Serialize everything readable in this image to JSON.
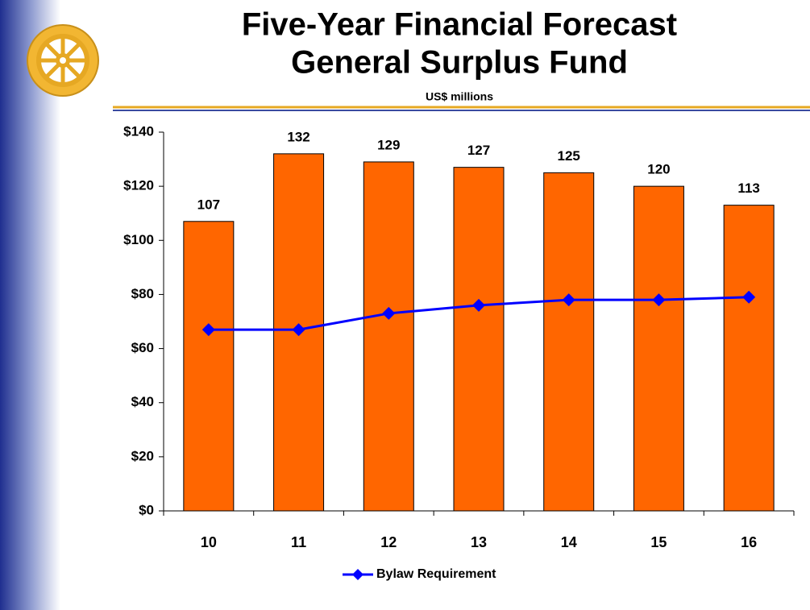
{
  "chart_data": {
    "type": "bar",
    "title": [
      "Five-Year Financial Forecast",
      "General Surplus Fund"
    ],
    "subtitle": "US$ millions",
    "categories": [
      "10",
      "11",
      "12",
      "13",
      "14",
      "15",
      "16"
    ],
    "series": [
      {
        "type": "bar",
        "color": "#ff6600",
        "values": [
          107,
          132,
          129,
          127,
          125,
          120,
          113
        ]
      },
      {
        "type": "line",
        "name": "Bylaw Requirement",
        "color": "#0000ff",
        "values": [
          67,
          67,
          73,
          76,
          78,
          78,
          79
        ]
      }
    ],
    "ylim": [
      0,
      140
    ],
    "yticks": [
      {
        "value": 0,
        "label": "$0"
      },
      {
        "value": 20,
        "label": "$20"
      },
      {
        "value": 40,
        "label": "$40"
      },
      {
        "value": 60,
        "label": "$60"
      },
      {
        "value": 80,
        "label": "$80"
      },
      {
        "value": 100,
        "label": "$100"
      },
      {
        "value": 120,
        "label": "$120"
      },
      {
        "value": 140,
        "label": "$140"
      }
    ],
    "legend": "bottom"
  }
}
